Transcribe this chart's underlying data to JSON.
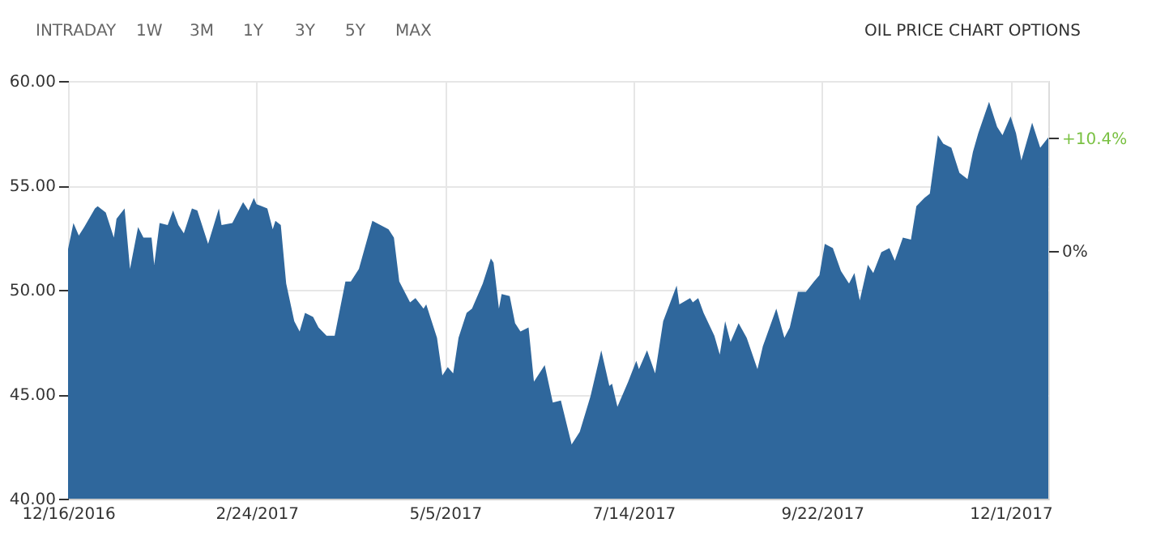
{
  "chart_data": {
    "type": "area",
    "annotations": [
      "INTRADAY",
      "1W",
      "3M",
      "1Y",
      "3Y",
      "5Y",
      "MAX",
      "OIL PRICE CHART OPTIONS"
    ],
    "x": [
      "2016-12-16",
      "2016-12-18",
      "2016-12-20",
      "2016-12-22",
      "2016-12-26",
      "2016-12-27",
      "2016-12-30",
      "2017-01-02",
      "2017-01-03",
      "2017-01-06",
      "2017-01-08",
      "2017-01-11",
      "2017-01-13",
      "2017-01-16",
      "2017-01-17",
      "2017-01-19",
      "2017-01-22",
      "2017-01-24",
      "2017-01-26",
      "2017-01-28",
      "2017-01-31",
      "2017-02-02",
      "2017-02-06",
      "2017-02-10",
      "2017-02-11",
      "2017-02-15",
      "2017-02-19",
      "2017-02-21",
      "2017-02-23",
      "2017-02-24",
      "2017-02-28",
      "2017-03-02",
      "2017-03-03",
      "2017-03-05",
      "2017-03-07",
      "2017-03-10",
      "2017-03-12",
      "2017-03-14",
      "2017-03-17",
      "2017-03-19",
      "2017-03-22",
      "2017-03-25",
      "2017-03-29",
      "2017-03-31",
      "2017-04-03",
      "2017-04-08",
      "2017-04-11",
      "2017-04-14",
      "2017-04-16",
      "2017-04-18",
      "2017-04-22",
      "2017-04-24",
      "2017-04-27",
      "2017-04-28",
      "2017-05-02",
      "2017-05-04",
      "2017-05-06",
      "2017-05-08",
      "2017-05-10",
      "2017-05-13",
      "2017-05-15",
      "2017-05-19",
      "2017-05-22",
      "2017-05-23",
      "2017-05-25",
      "2017-05-26",
      "2017-05-29",
      "2017-05-31",
      "2017-06-02",
      "2017-06-05",
      "2017-06-07",
      "2017-06-11",
      "2017-06-14",
      "2017-06-17",
      "2017-06-21",
      "2017-06-24",
      "2017-06-28",
      "2017-07-02",
      "2017-07-05",
      "2017-07-06",
      "2017-07-08",
      "2017-07-12",
      "2017-07-15",
      "2017-07-16",
      "2017-07-19",
      "2017-07-22",
      "2017-07-25",
      "2017-07-30",
      "2017-07-31",
      "2017-08-04",
      "2017-08-05",
      "2017-08-07",
      "2017-08-09",
      "2017-08-13",
      "2017-08-15",
      "2017-08-17",
      "2017-08-19",
      "2017-08-22",
      "2017-08-25",
      "2017-08-29",
      "2017-08-31",
      "2017-09-05",
      "2017-09-08",
      "2017-09-10",
      "2017-09-13",
      "2017-09-16",
      "2017-09-19",
      "2017-09-21",
      "2017-09-23",
      "2017-09-26",
      "2017-09-29",
      "2017-10-02",
      "2017-10-04",
      "2017-10-06",
      "2017-10-09",
      "2017-10-11",
      "2017-10-14",
      "2017-10-17",
      "2017-10-19",
      "2017-10-22",
      "2017-10-25",
      "2017-10-27",
      "2017-10-30",
      "2017-11-01",
      "2017-11-04",
      "2017-11-06",
      "2017-11-09",
      "2017-11-12",
      "2017-11-15",
      "2017-11-17",
      "2017-11-19",
      "2017-11-23",
      "2017-11-26",
      "2017-11-28",
      "2017-12-01",
      "2017-12-03",
      "2017-12-05",
      "2017-12-09",
      "2017-12-12",
      "2017-12-15"
    ],
    "series": [
      {
        "color": "#2f679c",
        "values": [
          51.95,
          53.2,
          52.6,
          53.0,
          53.9,
          54.0,
          53.7,
          52.5,
          53.4,
          53.9,
          51.0,
          53.0,
          52.5,
          52.5,
          51.2,
          53.2,
          53.1,
          53.8,
          53.1,
          52.7,
          53.9,
          53.8,
          52.2,
          53.9,
          53.1,
          53.2,
          54.2,
          53.8,
          54.4,
          54.1,
          53.9,
          52.9,
          53.3,
          53.1,
          50.3,
          48.5,
          48.0,
          48.9,
          48.7,
          48.2,
          47.8,
          47.8,
          50.4,
          50.4,
          51.0,
          53.3,
          53.1,
          52.9,
          52.5,
          50.4,
          49.4,
          49.6,
          49.1,
          49.3,
          47.7,
          45.9,
          46.3,
          46.0,
          47.7,
          48.9,
          49.1,
          50.3,
          51.5,
          51.3,
          49.1,
          49.8,
          49.7,
          48.4,
          48.0,
          48.2,
          45.6,
          46.4,
          44.6,
          44.7,
          42.6,
          43.2,
          44.9,
          47.1,
          45.4,
          45.5,
          44.4,
          45.6,
          46.6,
          46.2,
          47.1,
          46.0,
          48.5,
          50.2,
          49.3,
          49.6,
          49.4,
          49.6,
          48.9,
          47.8,
          46.9,
          48.5,
          47.5,
          48.4,
          47.7,
          46.2,
          47.3,
          49.1,
          47.7,
          48.2,
          49.9,
          49.9,
          50.4,
          50.7,
          52.2,
          52.0,
          50.9,
          50.3,
          50.8,
          49.5,
          51.2,
          50.8,
          51.8,
          52.0,
          51.4,
          52.5,
          52.4,
          54.0,
          54.4,
          54.6,
          57.4,
          57.0,
          56.8,
          55.6,
          55.3,
          56.6,
          57.5,
          59.0,
          57.8,
          57.4,
          58.3,
          57.5,
          56.2,
          58.0,
          56.8,
          57.3
        ]
      }
    ],
    "xlim": [
      "2016-12-16",
      "2017-12-15"
    ],
    "xticks": [
      {
        "value": "2016-12-16",
        "label": "12/16/2016"
      },
      {
        "value": "2017-02-24",
        "label": "2/24/2017"
      },
      {
        "value": "2017-05-05",
        "label": "5/5/2017"
      },
      {
        "value": "2017-07-14",
        "label": "7/14/2017"
      },
      {
        "value": "2017-09-22",
        "label": "9/22/2017"
      },
      {
        "value": "2017-12-01",
        "label": "12/1/2017"
      }
    ],
    "ylim": [
      40,
      60
    ],
    "yticks": [
      {
        "value": 40,
        "label": "40.00"
      },
      {
        "value": 45,
        "label": "45.00"
      },
      {
        "value": 50,
        "label": "50.00"
      },
      {
        "value": 55,
        "label": "55.00"
      },
      {
        "value": 60,
        "label": "60.00"
      }
    ],
    "y2lim": [
      -22.9,
      15.7
    ],
    "y2ticks": [
      {
        "value": 10.4,
        "label": "+10.4%"
      },
      {
        "value": 0,
        "label": "0%"
      }
    ],
    "grid": true
  }
}
